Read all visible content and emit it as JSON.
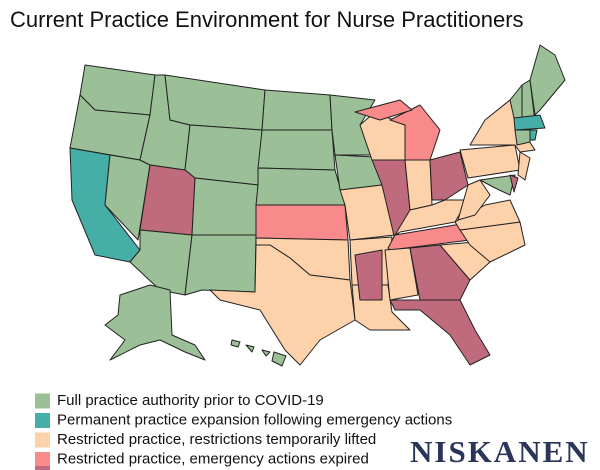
{
  "title": "Current Practice Environment for Nurse Practitioners",
  "legend": [
    {
      "label": "Full practice authority prior to COVID-19",
      "color": "#9bbf96"
    },
    {
      "label": "Permanent practice expansion following emergency actions",
      "color": "#45aea7"
    },
    {
      "label": "Restricted practice, restrictions temporarily lifted",
      "color": "#fdd1aa"
    },
    {
      "label": "Restricted practice, emergency actions expired",
      "color": "#f98a8c"
    }
  ],
  "brand": "NISKANEN"
}
